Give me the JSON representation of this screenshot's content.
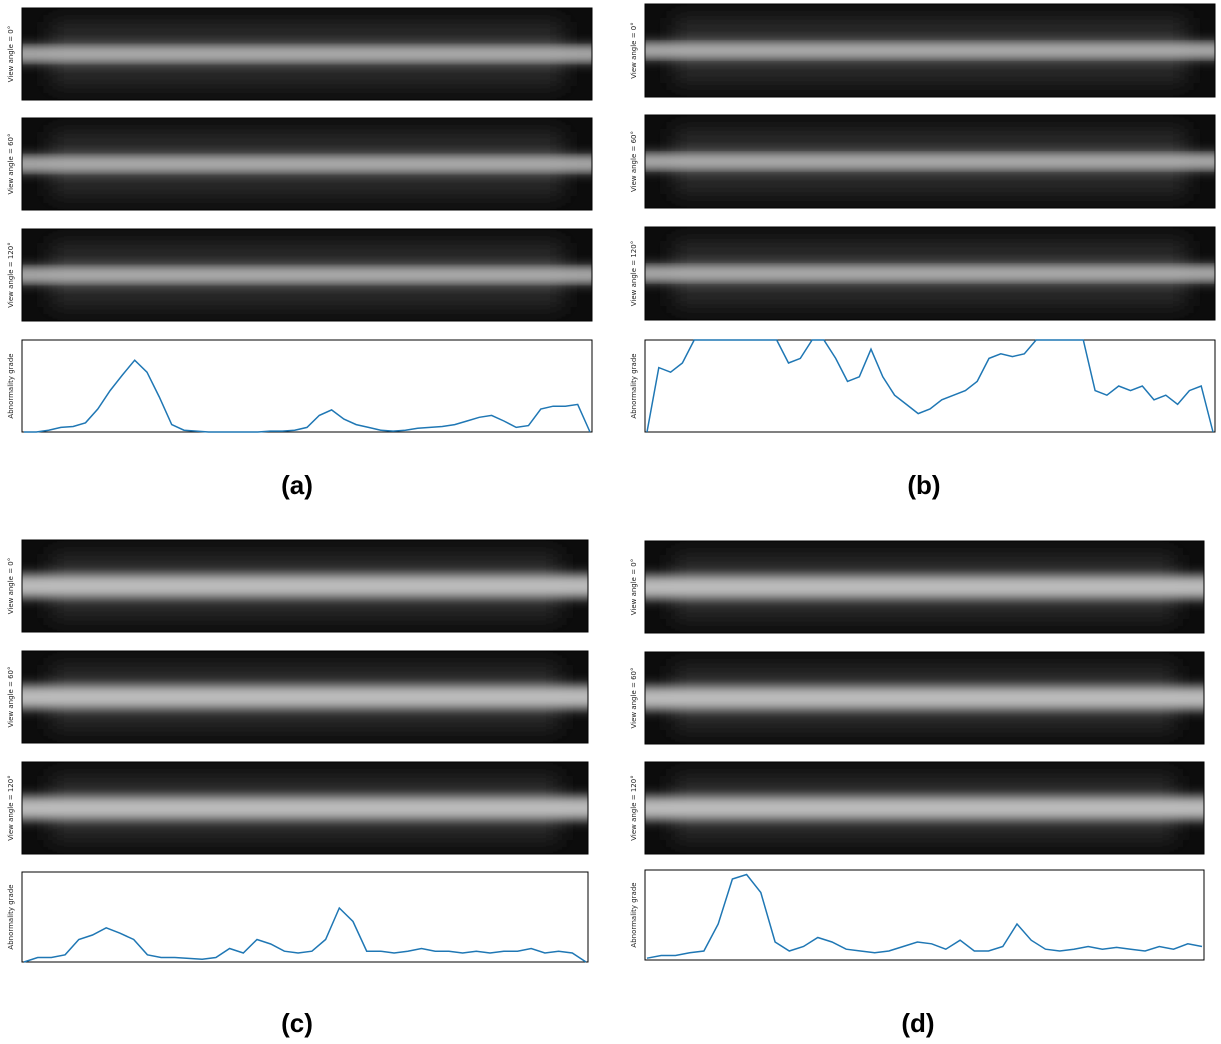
{
  "figure": {
    "panels": [
      {
        "label": "(a)",
        "views": [
          "View angle = 0°",
          "View angle = 60°",
          "View angle = 120°"
        ]
      },
      {
        "label": "(b)",
        "views": [
          "View angle = 0°",
          "View angle = 60°",
          "View angle = 120°"
        ]
      },
      {
        "label": "(c)",
        "views": [
          "View angle = 0°",
          "View angle = 60°",
          "View angle = 120°"
        ]
      },
      {
        "label": "(d)",
        "views": [
          "View angle = 0°",
          "View angle = 60°",
          "View angle = 120°"
        ]
      }
    ]
  },
  "chart_data": [
    {
      "type": "line",
      "y_label": "Abnormality grade",
      "color": "#1f77b4",
      "ylim": [
        0,
        1
      ],
      "values": [
        0,
        0,
        0.02,
        0.05,
        0.06,
        0.1,
        0.25,
        0.45,
        0.62,
        0.78,
        0.65,
        0.38,
        0.08,
        0.02,
        0.01,
        0,
        0,
        0,
        0,
        0,
        0.01,
        0.01,
        0.02,
        0.05,
        0.18,
        0.24,
        0.14,
        0.08,
        0.05,
        0.02,
        0.01,
        0.02,
        0.04,
        0.05,
        0.06,
        0.08,
        0.12,
        0.16,
        0.18,
        0.12,
        0.05,
        0.07,
        0.25,
        0.28,
        0.28,
        0.3,
        0
      ]
    },
    {
      "type": "line",
      "y_label": "Abnormality grade",
      "color": "#1f77b4",
      "ylim": [
        0,
        1
      ],
      "values": [
        0,
        0.7,
        0.65,
        0.75,
        1,
        1,
        1,
        1,
        1,
        1,
        1,
        1,
        0.75,
        0.8,
        1,
        1,
        0.8,
        0.55,
        0.6,
        0.9,
        0.6,
        0.4,
        0.3,
        0.2,
        0.25,
        0.35,
        0.4,
        0.45,
        0.55,
        0.8,
        0.85,
        0.82,
        0.85,
        1,
        1,
        1,
        1,
        1,
        0.45,
        0.4,
        0.5,
        0.45,
        0.5,
        0.35,
        0.4,
        0.3,
        0.45,
        0.5,
        0
      ]
    },
    {
      "type": "line",
      "y_label": "Abnormality grade",
      "color": "#1f77b4",
      "ylim": [
        0,
        1
      ],
      "values": [
        0,
        0.05,
        0.05,
        0.08,
        0.25,
        0.3,
        0.38,
        0.32,
        0.25,
        0.08,
        0.05,
        0.05,
        0.04,
        0.03,
        0.05,
        0.15,
        0.1,
        0.25,
        0.2,
        0.12,
        0.1,
        0.12,
        0.25,
        0.6,
        0.45,
        0.12,
        0.12,
        0.1,
        0.12,
        0.15,
        0.12,
        0.12,
        0.1,
        0.12,
        0.1,
        0.12,
        0.12,
        0.15,
        0.1,
        0.12,
        0.1,
        0
      ]
    },
    {
      "type": "line",
      "y_label": "Abnormality grade",
      "color": "#1f77b4",
      "ylim": [
        0,
        1
      ],
      "values": [
        0.02,
        0.05,
        0.05,
        0.08,
        0.1,
        0.4,
        0.9,
        0.95,
        0.75,
        0.2,
        0.1,
        0.15,
        0.25,
        0.2,
        0.12,
        0.1,
        0.08,
        0.1,
        0.15,
        0.2,
        0.18,
        0.12,
        0.22,
        0.1,
        0.1,
        0.15,
        0.4,
        0.22,
        0.12,
        0.1,
        0.12,
        0.15,
        0.12,
        0.14,
        0.12,
        0.1,
        0.15,
        0.12,
        0.18,
        0.15
      ]
    }
  ]
}
